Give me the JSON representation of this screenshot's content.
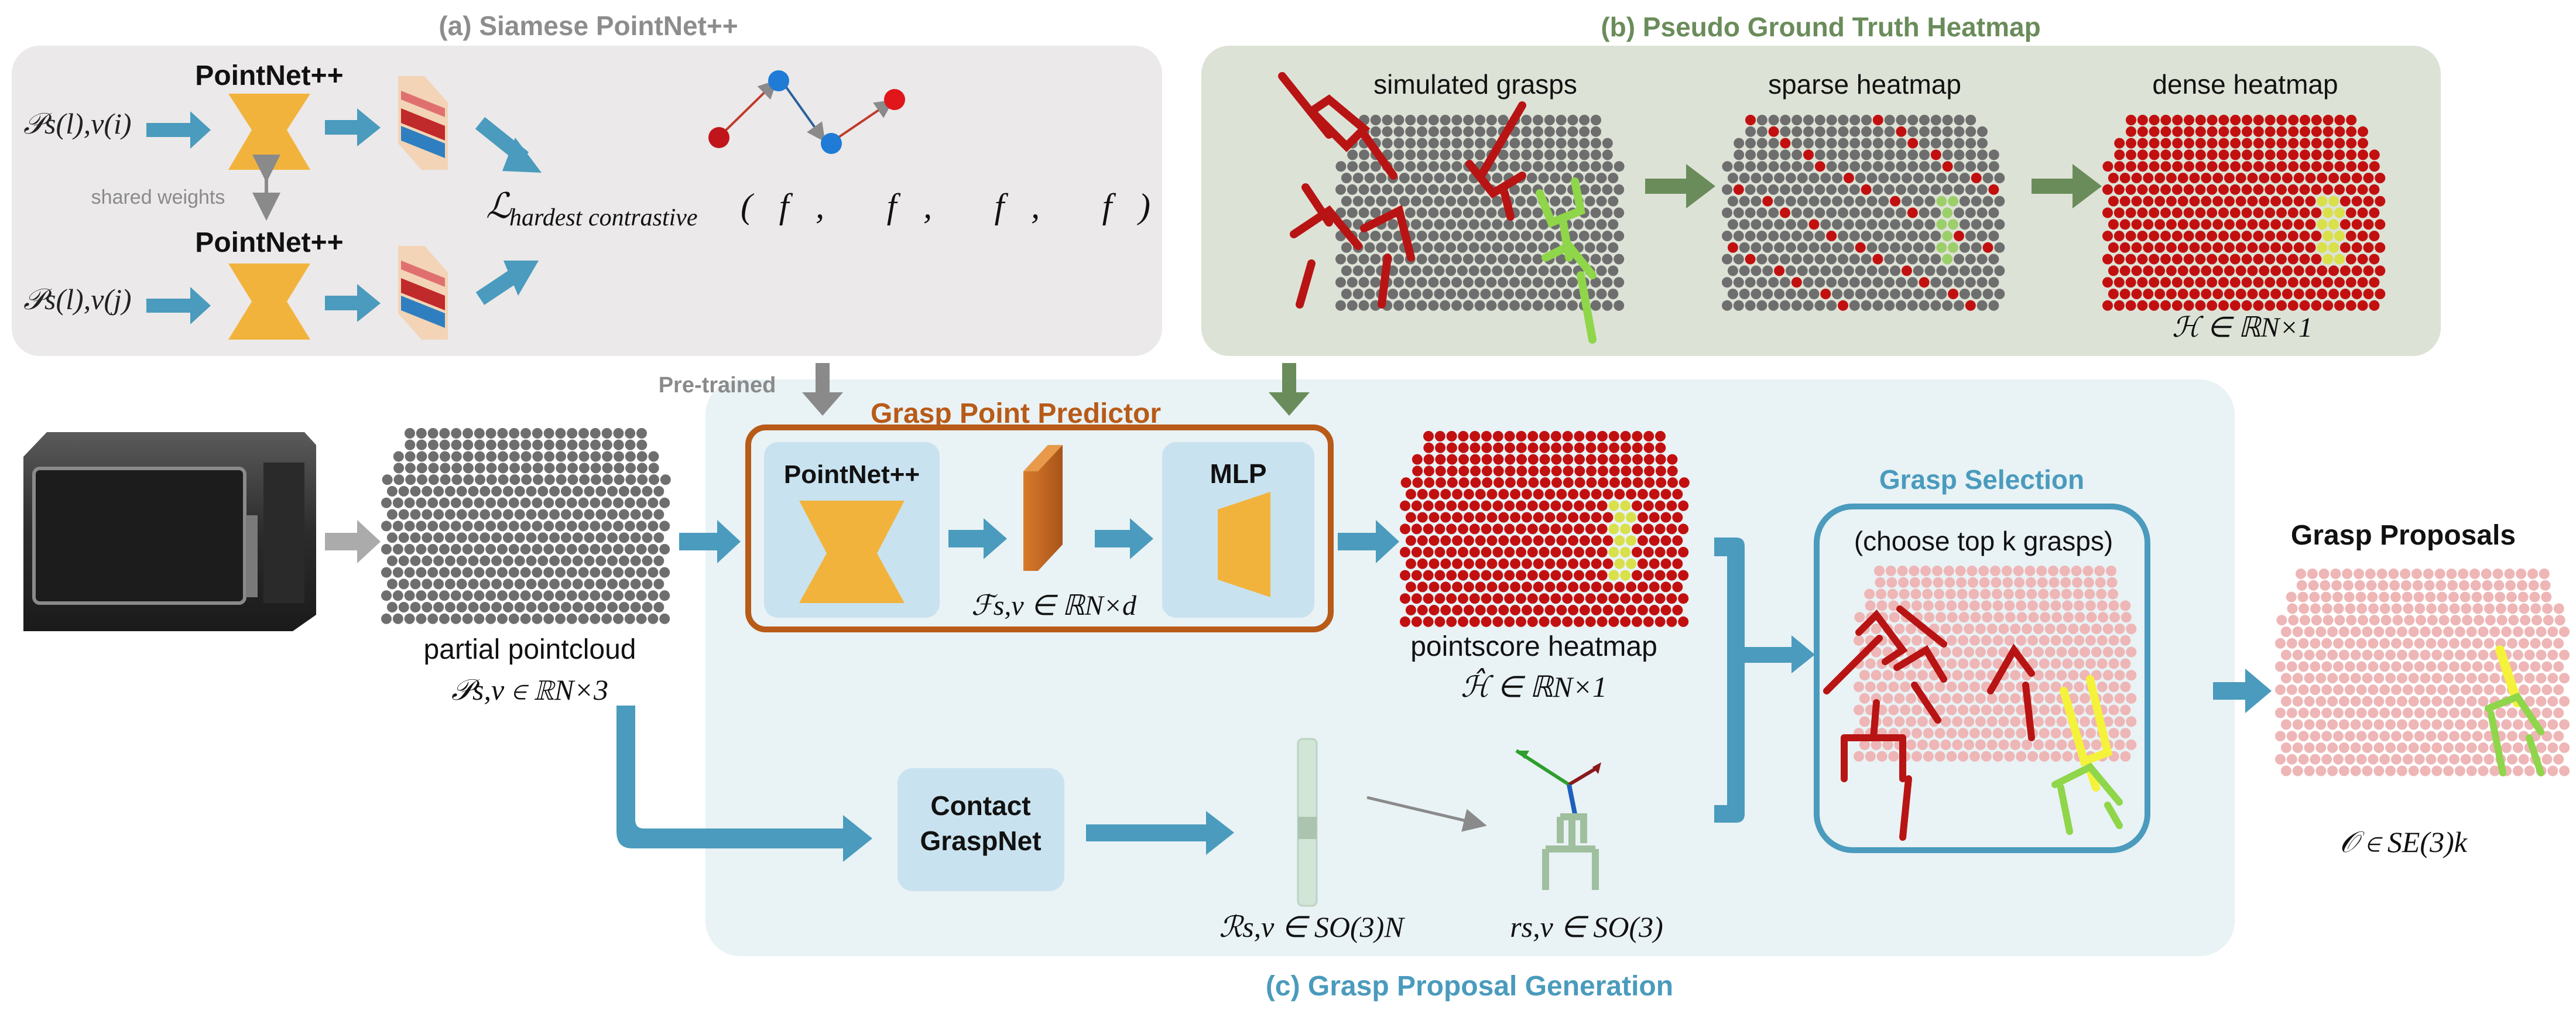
{
  "colors": {
    "gray_panel": "#ebe9e9",
    "green_panel": "#dde2d6",
    "blue_panel": "#e9f2f5",
    "arrow_blue": "#4a9bbd",
    "arrow_green": "#6a8c5a",
    "arrow_gray": "#9a9a9a",
    "box_brown": "#b85a18",
    "accent_orange": "#f2b33d",
    "heat_red": "#c21010",
    "selection_blue": "#4a9bbd",
    "label_gray": "#8d8d8d",
    "label_green": "#6a8c5a",
    "label_blue": "#4a9bbd",
    "point_gray": "#6e6e6e",
    "pink": "#eeb6b6",
    "grasp_green": "#7ccc3c",
    "grasp_yellow": "#f4f23a"
  },
  "panel_a": {
    "title": "(a) Siamese PointNet++",
    "pointnet_top": "PointNet++",
    "pointnet_bottom": "PointNet++",
    "input_top": "𝒫s(l),v(i)",
    "input_bottom": "𝒫s(l),v(j)",
    "shared_weights": "shared weights",
    "loss_main": "ℒ",
    "loss_sub": "hardest contrastive",
    "loss_args": "(f, f, f, f)",
    "pretrained": "Pre-trained"
  },
  "panel_b": {
    "title": "(b) Pseudo Ground Truth Heatmap",
    "simulated": "simulated grasps",
    "sparse": "sparse heatmap",
    "dense": "dense heatmap",
    "dense_math": "ℋ ∈ ℝN×1"
  },
  "panel_c": {
    "title": "(c) Grasp Proposal Generation",
    "predictor_title": "Grasp Point Predictor",
    "pointnet": "PointNet++",
    "feature_math": "ℱs,v ∈ ℝN×d",
    "mlp": "MLP",
    "partial_label": "partial pointcloud",
    "partial_math": "𝒫s,v ∈ ℝN×3",
    "heatmap_label": "pointscore heatmap",
    "heatmap_math": "ℋ̂ ∈ ℝN×1",
    "contact_line1": "Contact",
    "contact_line2": "GraspNet",
    "rotations_math": "ℛs,v ∈ SO(3)N",
    "rotation_math": "rs,v ∈ SO(3)",
    "selection_title": "Grasp Selection",
    "selection_sub": "(choose top k grasps)",
    "proposals_title": "Grasp Proposals",
    "proposals_math": "𝒪 ∈ SE(3)k"
  }
}
